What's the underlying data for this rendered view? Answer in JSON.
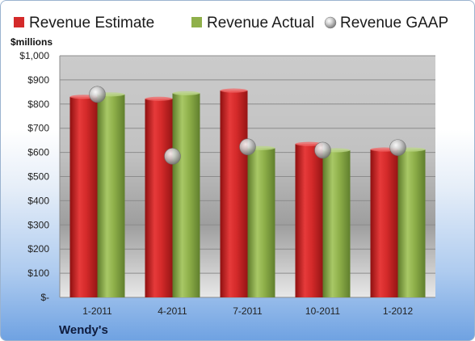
{
  "chart_data": {
    "type": "bar",
    "title": "",
    "xlabel": "",
    "ylabel": "$millions",
    "categories": [
      "1-2011",
      "4-2011",
      "7-2011",
      "10-2011",
      "1-2012"
    ],
    "series": [
      {
        "name": "Revenue Estimate",
        "kind": "bar",
        "color": "#d42a2a",
        "values": [
          830,
          822,
          856,
          635,
          612
        ]
      },
      {
        "name": "Revenue Actual",
        "kind": "bar",
        "color": "#8fb04a",
        "values": [
          840,
          845,
          618,
          609,
          612
        ]
      },
      {
        "name": "Revenue GAAP",
        "kind": "marker",
        "color": "#c4c4c4",
        "values": [
          840,
          584,
          623,
          609,
          620
        ]
      }
    ],
    "ylim": [
      0,
      1000
    ],
    "yticks": [
      0,
      100,
      200,
      300,
      400,
      500,
      600,
      700,
      800,
      900,
      1000
    ],
    "ytick_labels": [
      "$-",
      "$100",
      "$200",
      "$300",
      "$400",
      "$500",
      "$600",
      "$700",
      "$800",
      "$900",
      "$1,000"
    ],
    "grid": true,
    "legend": "top",
    "footer": "Wendy's"
  }
}
